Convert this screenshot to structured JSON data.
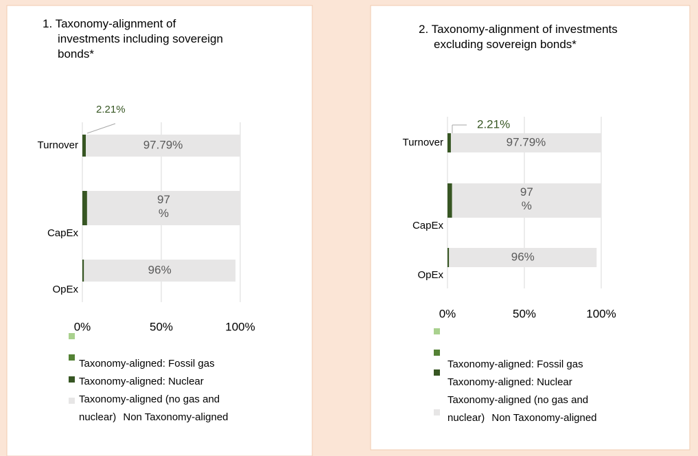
{
  "chart_data": [
    {
      "type": "stacked-bar-horizontal",
      "title": "1. Taxonomy-alignment of investments including sovereign bonds*",
      "categories": [
        "Turnover",
        "CapEx",
        "OpEx"
      ],
      "series": [
        {
          "name": "Taxonomy-aligned: Fossil gas",
          "color": "#a9d18e",
          "values": [
            0,
            0,
            0
          ]
        },
        {
          "name": "Taxonomy-aligned: Nuclear",
          "color": "#548235",
          "values": [
            0,
            0,
            0
          ]
        },
        {
          "name": "Taxonomy-aligned (no gas and nuclear)",
          "color": "#375623",
          "values": [
            2.21,
            3,
            1
          ],
          "value_labels": [
            "2.21%",
            null,
            null
          ]
        },
        {
          "name": "Non Taxonomy-aligned",
          "color": "#e7e6e6",
          "values": [
            97.79,
            97,
            96
          ],
          "value_labels": [
            "97.79%",
            "97%",
            "96%"
          ]
        }
      ],
      "xlim": [
        0,
        100
      ],
      "xticks": [
        {
          "value": 0,
          "label": "0%"
        },
        {
          "value": 50,
          "label": "50%"
        },
        {
          "value": 100,
          "label": "100%"
        }
      ],
      "grid": true
    },
    {
      "type": "stacked-bar-horizontal",
      "title": "2. Taxonomy-alignment of investments excluding sovereign bonds*",
      "categories": [
        "Turnover",
        "CapEx",
        "OpEx"
      ],
      "series": [
        {
          "name": "Taxonomy-aligned: Fossil gas",
          "color": "#a9d18e",
          "values": [
            0,
            0,
            0
          ]
        },
        {
          "name": "Taxonomy-aligned: Nuclear",
          "color": "#548235",
          "values": [
            0,
            0,
            0
          ]
        },
        {
          "name": "Taxonomy-aligned (no gas and nuclear)",
          "color": "#375623",
          "values": [
            2.21,
            3,
            1
          ],
          "value_labels": [
            "2.21%",
            null,
            null
          ]
        },
        {
          "name": "Non Taxonomy-aligned",
          "color": "#e7e6e6",
          "values": [
            97.79,
            97,
            96
          ],
          "value_labels": [
            "97.79%",
            "97%",
            "96%"
          ]
        }
      ],
      "xlim": [
        0,
        100
      ],
      "xticks": [
        {
          "value": 0,
          "label": "0%"
        },
        {
          "value": 50,
          "label": "50%"
        },
        {
          "value": 100,
          "label": "100%"
        }
      ],
      "grid": true
    }
  ]
}
